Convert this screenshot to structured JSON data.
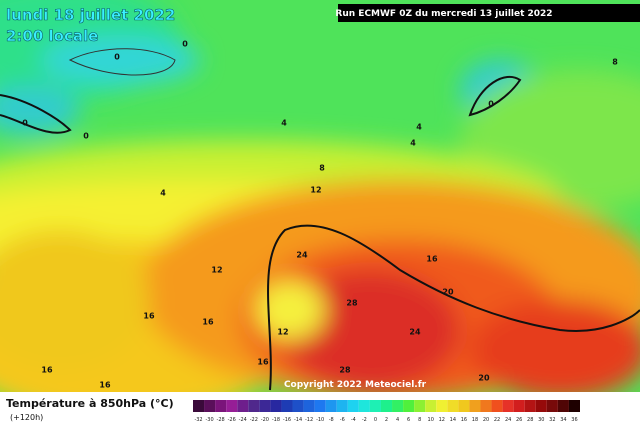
{
  "header": {
    "date": "lundi 18 juillet 2022",
    "time": "2:00 locale",
    "run": "Run ECMWF 0Z du mercredi 13 juillet 2022"
  },
  "map": {
    "copyright": "Copyright 2022 Meteociel.fr",
    "contour_labels": [
      0,
      0,
      0,
      0,
      0,
      4,
      4,
      4,
      4,
      8,
      8,
      12,
      12,
      12,
      16,
      16,
      16,
      16,
      16,
      16,
      20,
      20,
      24,
      24,
      28,
      28
    ]
  },
  "legend": {
    "title": "Température à 850hPa (°C)",
    "lead": "(+120h)",
    "scale": [
      -32,
      -30,
      -28,
      -26,
      -24,
      -22,
      -20,
      -18,
      -16,
      -14,
      -12,
      -10,
      -8,
      -6,
      -4,
      -2,
      0,
      2,
      4,
      6,
      8,
      10,
      12,
      14,
      16,
      18,
      20,
      22,
      24,
      26,
      28,
      30,
      32,
      34,
      36
    ]
  }
}
